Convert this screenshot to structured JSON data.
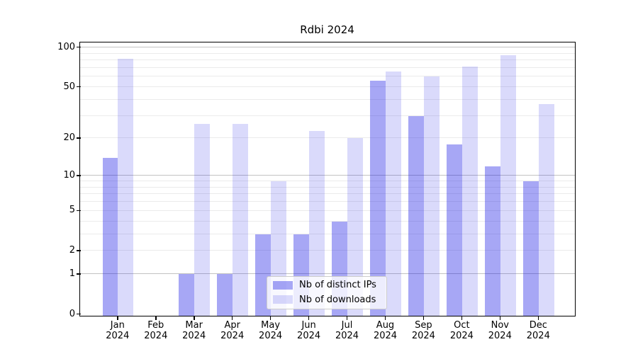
{
  "title": "Rdbi 2024",
  "colors": {
    "distinct_ips_bar": "rgba(10,10,228,0.36)",
    "downloads_bar": "rgba(10,10,228,0.15)",
    "major_gridline": "#c3c3c3",
    "minor_gridline": "#ebebeb",
    "axis": "#000000",
    "legend_border": "#cccccc"
  },
  "chart_data": {
    "type": "bar",
    "title": "Rdbi 2024",
    "categories": [
      "Jan 2024",
      "Feb 2024",
      "Mar 2024",
      "Apr 2024",
      "May 2024",
      "Jun 2024",
      "Jul 2024",
      "Aug 2024",
      "Sep 2024",
      "Oct 2024",
      "Nov 2024",
      "Dec 2024"
    ],
    "series": [
      {
        "name": "Nb of distinct IPs",
        "values": [
          14,
          0,
          1,
          1,
          3,
          3,
          4,
          56,
          30,
          18,
          12,
          9
        ]
      },
      {
        "name": "Nb of downloads",
        "values": [
          82,
          0,
          26,
          26,
          9,
          23,
          20,
          66,
          60,
          72,
          87,
          37
        ]
      }
    ],
    "xlabel": "",
    "ylabel": "",
    "yscale": "log1p",
    "ylim": [
      0,
      109
    ],
    "yticks": [
      0,
      1,
      2,
      5,
      10,
      20,
      50,
      100
    ],
    "minor_grid_values": [
      2,
      3,
      4,
      5,
      6,
      7,
      8,
      9,
      20,
      30,
      40,
      50,
      60,
      70,
      80,
      90
    ],
    "major_grid_values": [
      1,
      10,
      100
    ],
    "grid": true,
    "legend_position": "lower center inside"
  }
}
